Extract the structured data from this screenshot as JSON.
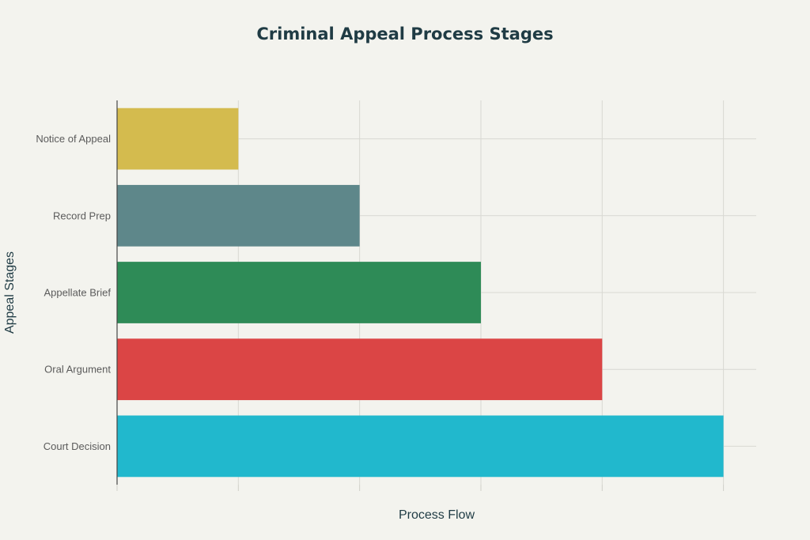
{
  "chart_data": {
    "type": "bar",
    "orientation": "horizontal",
    "title": "Criminal Appeal Process Stages",
    "xlabel": "Process Flow",
    "ylabel": "Appeal Stages",
    "categories": [
      "Notice of Appeal",
      "Record Prep",
      "Appellate Brief",
      "Oral Argument",
      "Court Decision"
    ],
    "values": [
      1,
      2,
      3,
      4,
      5
    ],
    "xlim": [
      0,
      5.27
    ],
    "x_ticks": [
      0,
      1,
      2,
      3,
      4,
      5
    ],
    "x_tick_labels_visible": false,
    "grid": true,
    "legend": false,
    "colors": [
      "#d4bb4e",
      "#5e878a",
      "#2e8b57",
      "#db4545",
      "#21b8cd"
    ]
  }
}
